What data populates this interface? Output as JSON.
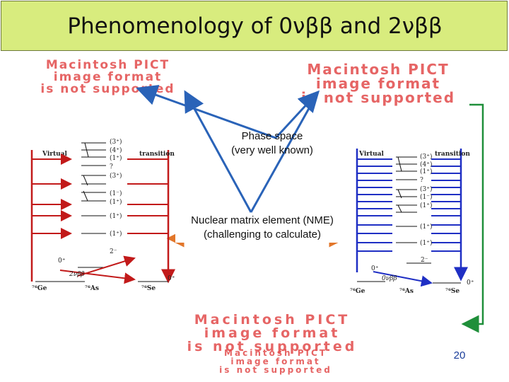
{
  "slide": {
    "title": "Phenomenology of 0νββ and 2νββ",
    "page_number": "20"
  },
  "pict_placeholder": {
    "line1": "Macintosh PICT",
    "line2": "image format",
    "line3": "is not supported"
  },
  "callouts": {
    "phase_space_line1": "Phase space",
    "phase_space_line2": "(very well known)",
    "nme_line1": "Nuclear matrix element (NME)",
    "nme_line2": "(challenging to calculate)"
  },
  "left_diagram": {
    "virtual_label": "Virtual",
    "transition_label": "transition",
    "levels": [
      "(3⁺)",
      "(4⁺)",
      "(1⁺)",
      "?",
      "(3⁺)",
      "(1⁻)",
      "(1⁺)",
      "(1⁺)",
      "(1⁺)"
    ],
    "gs_label": "0⁺",
    "twominus": "2⁻",
    "decay_label": "2νββ",
    "nuclei": [
      "⁷⁶Ge",
      "⁷⁶As",
      "⁷⁶Se"
    ],
    "se_gs": "0⁺"
  },
  "right_diagram": {
    "virtual_label": "Virtual",
    "transition_label": "transition",
    "levels": [
      "(3⁺)",
      "(4⁺)",
      "(1⁺)",
      "?",
      "(3⁺)",
      "(1⁻)",
      "(1⁺)",
      "(1⁺)",
      "(1⁺)"
    ],
    "gs_label": "0⁺",
    "twominus": "2⁻",
    "decay_label": "0νββ",
    "nuclei": [
      "⁷⁶Ge",
      "⁷⁶As",
      "⁷⁶Se"
    ],
    "se_gs": "0⁺"
  },
  "colors": {
    "title_bg": "#d8ec7e",
    "placeholder_red": "#e24b4b",
    "arrow_green": "#1f8f3a",
    "arrow_orange": "#e2762a",
    "level_red": "#c21a1a",
    "level_blue": "#1f2fc4",
    "page_number_blue": "#1a3d9a"
  }
}
